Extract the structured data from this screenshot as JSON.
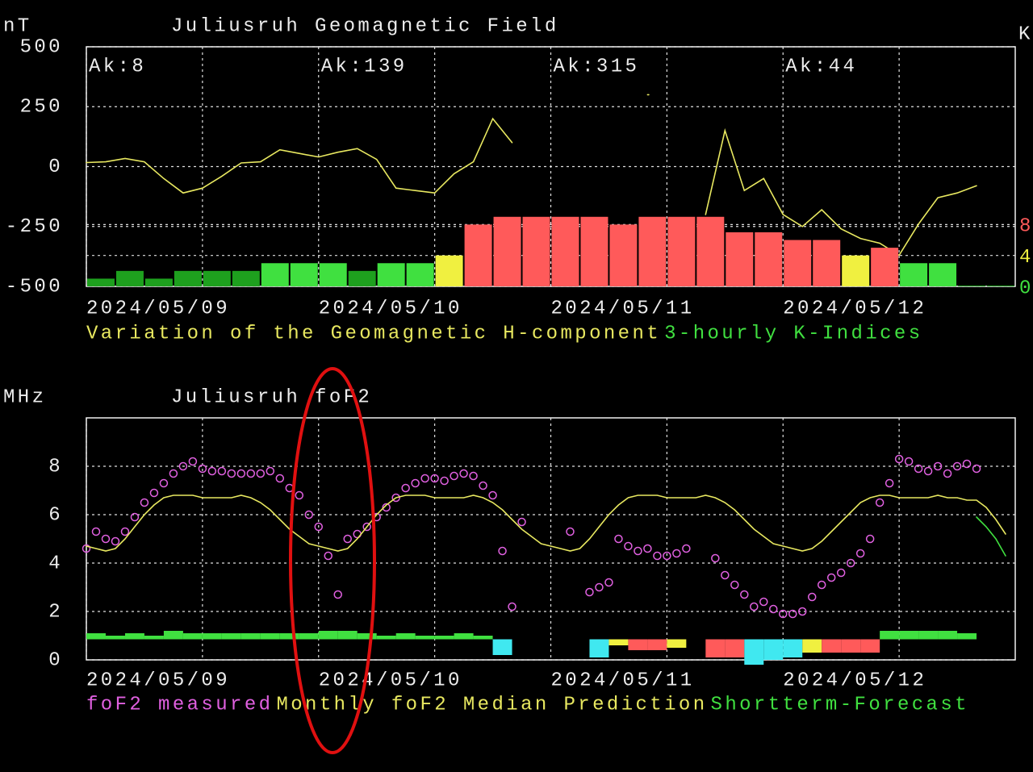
{
  "chart_data": [
    {
      "type": "combo",
      "title": "Juliusruh Geomagnetic Field",
      "y_label": "nT",
      "y2_label": "K",
      "annotations": [
        "Ak:8",
        "Ak:139",
        "Ak:315",
        "Ak:44"
      ],
      "xlim": [
        0,
        96
      ],
      "xticks": [
        {
          "value": 0,
          "label": "2024/05/09"
        },
        {
          "value": 24,
          "label": "2024/05/10"
        },
        {
          "value": 48,
          "label": "2024/05/11"
        },
        {
          "value": 72,
          "label": "2024/05/12"
        }
      ],
      "ylim": [
        -500,
        500
      ],
      "yticks": [
        -500,
        -250,
        0,
        250,
        500
      ],
      "y2lim": [
        0,
        31
      ],
      "y2ticks": [
        0,
        4,
        8
      ],
      "y2tick_colors": [
        "#40e040",
        "#f0f040",
        "#ff5a5a"
      ],
      "grid": true,
      "series": [
        {
          "name": "Variation of the Geomagnetic H-component",
          "type": "line",
          "color": "#e8e860",
          "x": [
            0,
            2,
            4,
            6,
            8,
            10,
            12,
            14,
            16,
            18,
            20,
            22,
            24,
            26,
            28,
            30,
            32,
            34,
            36,
            38,
            40,
            42,
            44,
            46,
            48,
            50,
            52,
            54,
            56,
            58,
            60,
            62,
            64,
            66,
            68,
            70,
            72,
            74,
            76,
            78,
            80,
            82,
            84,
            86,
            88,
            90,
            92,
            94,
            96
          ],
          "values": [
            17,
            20,
            34,
            20,
            -50,
            -110,
            -90,
            -40,
            15,
            20,
            70,
            55,
            40,
            60,
            75,
            30,
            -90,
            -100,
            -110,
            -30,
            20,
            200,
            100,
            null,
            null,
            null,
            null,
            null,
            null,
            300,
            null,
            null,
            -200,
            150,
            -100,
            -50,
            -200,
            -250,
            -180,
            -260,
            -300,
            -320,
            -370,
            -240,
            -130,
            -110,
            -80,
            null,
            null
          ]
        },
        {
          "name": "3-hourly K-Indices",
          "type": "bar",
          "axis": "y2",
          "color": "#40e040",
          "x": [
            0,
            3,
            6,
            9,
            12,
            15,
            18,
            21,
            24,
            27,
            30,
            33,
            36,
            39,
            42,
            45,
            48,
            51,
            54,
            57,
            60,
            63,
            66,
            69,
            72,
            75,
            78,
            81,
            84,
            87,
            90,
            93
          ],
          "values": [
            1,
            2,
            1,
            2,
            2,
            2,
            3,
            3,
            3,
            2,
            3,
            3,
            4,
            8,
            9,
            9,
            9,
            9,
            8,
            9,
            9,
            9,
            7,
            7,
            6,
            6,
            4,
            5,
            3,
            3,
            0,
            0
          ],
          "colors": [
            "#1ea01e",
            "#1ea01e",
            "#1ea01e",
            "#1ea01e",
            "#1ea01e",
            "#1ea01e",
            "#40e040",
            "#40e040",
            "#40e040",
            "#1ea01e",
            "#40e040",
            "#40e040",
            "#f0f040",
            "#ff5a5a",
            "#ff5a5a",
            "#ff5a5a",
            "#ff5a5a",
            "#ff5a5a",
            "#ff5a5a",
            "#ff5a5a",
            "#ff5a5a",
            "#ff5a5a",
            "#ff5a5a",
            "#ff5a5a",
            "#ff5a5a",
            "#ff5a5a",
            "#f0f040",
            "#ff5a5a",
            "#40e040",
            "#40e040",
            "#1ea01e",
            "#1ea01e"
          ]
        }
      ]
    },
    {
      "type": "combo",
      "title": "Juliusruh foF2",
      "y_label": "MHz",
      "xlim": [
        0,
        96
      ],
      "xticks": [
        {
          "value": 0,
          "label": "2024/05/09"
        },
        {
          "value": 24,
          "label": "2024/05/10"
        },
        {
          "value": 48,
          "label": "2024/05/11"
        },
        {
          "value": 72,
          "label": "2024/05/12"
        }
      ],
      "ylim": [
        0,
        10
      ],
      "yticks": [
        0,
        2,
        4,
        6,
        8
      ],
      "grid": true,
      "series": [
        {
          "type": "range_bar",
          "x": [
            0,
            2,
            4,
            6,
            8,
            10,
            12,
            14,
            16,
            18,
            20,
            22,
            24,
            26,
            28,
            30,
            32,
            34,
            36,
            38,
            40,
            42,
            44,
            46,
            48,
            50,
            52,
            54,
            56,
            58,
            60,
            62,
            64,
            66,
            68,
            70,
            72,
            74,
            76,
            78,
            80,
            82,
            84,
            86,
            88,
            90,
            92,
            94
          ],
          "low": [
            0.85,
            0.85,
            0.85,
            0.85,
            0.85,
            0.85,
            0.85,
            0.85,
            0.85,
            0.85,
            0.85,
            0.85,
            0.85,
            0.85,
            0.85,
            0.85,
            0.85,
            0.85,
            0.85,
            0.85,
            0.85,
            0.2,
            null,
            null,
            null,
            null,
            0.1,
            0.6,
            0.4,
            0.4,
            0.5,
            null,
            0.1,
            0.1,
            -0.2,
            0.0,
            0.1,
            0.3,
            0.3,
            0.3,
            0.3,
            0.85,
            0.85,
            0.85,
            0.85,
            0.85,
            null,
            null
          ],
          "values": [
            1.1,
            1.0,
            1.1,
            1.0,
            1.2,
            1.1,
            1.1,
            1.1,
            1.1,
            1.1,
            1.1,
            1.1,
            1.2,
            1.2,
            1.1,
            1.0,
            1.1,
            1.0,
            1.0,
            1.1,
            1.0,
            0.85,
            null,
            null,
            null,
            null,
            0.85,
            0.85,
            0.85,
            0.85,
            0.85,
            null,
            0.85,
            0.85,
            0.85,
            0.85,
            0.85,
            0.85,
            0.85,
            0.85,
            0.85,
            1.2,
            1.2,
            1.2,
            1.2,
            1.1,
            null,
            null
          ],
          "colors": [
            "#40e040",
            "#40e040",
            "#40e040",
            "#40e040",
            "#40e040",
            "#40e040",
            "#40e040",
            "#40e040",
            "#40e040",
            "#40e040",
            "#40e040",
            "#40e040",
            "#40e040",
            "#40e040",
            "#40e040",
            "#40e040",
            "#40e040",
            "#40e040",
            "#40e040",
            "#40e040",
            "#40e040",
            "#40e8f0",
            null,
            null,
            null,
            null,
            "#40e8f0",
            "#f0f040",
            "#ff5a5a",
            "#ff5a5a",
            "#f0f040",
            null,
            "#ff5a5a",
            "#ff5a5a",
            "#40e8f0",
            "#40e8f0",
            "#40e8f0",
            "#f0f040",
            "#ff5a5a",
            "#ff5a5a",
            "#ff5a5a",
            "#40e040",
            "#40e040",
            "#40e040",
            "#40e040",
            "#40e040",
            null,
            null
          ]
        },
        {
          "name": "foF2 measured",
          "type": "scatter",
          "color": "#e060e0",
          "x": [
            0,
            1,
            2,
            3,
            4,
            5,
            6,
            7,
            8,
            9,
            10,
            11,
            12,
            13,
            14,
            15,
            16,
            17,
            18,
            19,
            20,
            21,
            22,
            23,
            24,
            25,
            26,
            27,
            28,
            29,
            30,
            31,
            32,
            33,
            34,
            35,
            36,
            37,
            38,
            39,
            40,
            41,
            42,
            43,
            44,
            45,
            46,
            47,
            48,
            49,
            50,
            51,
            52,
            53,
            54,
            55,
            56,
            57,
            58,
            59,
            60,
            61,
            62,
            63,
            64,
            65,
            66,
            67,
            68,
            69,
            70,
            71,
            72,
            73,
            74,
            75,
            76,
            77,
            78,
            79,
            80,
            81,
            82,
            83,
            84,
            85,
            86,
            87,
            88,
            89,
            90,
            91,
            92,
            93,
            94,
            95
          ],
          "values": [
            4.6,
            5.3,
            5.0,
            4.9,
            5.3,
            5.9,
            6.5,
            6.9,
            7.3,
            7.7,
            8.0,
            8.2,
            7.9,
            7.8,
            7.8,
            7.7,
            7.7,
            7.7,
            7.7,
            7.8,
            7.5,
            7.1,
            6.8,
            6.0,
            5.5,
            4.3,
            2.7,
            5.0,
            5.2,
            5.5,
            5.9,
            6.3,
            6.7,
            7.1,
            7.3,
            7.5,
            7.5,
            7.4,
            7.6,
            7.7,
            7.6,
            7.2,
            6.8,
            4.5,
            2.2,
            5.7,
            null,
            null,
            null,
            null,
            5.3,
            null,
            2.8,
            3.0,
            3.2,
            5.0,
            4.7,
            4.5,
            4.6,
            4.3,
            4.3,
            4.4,
            4.6,
            null,
            null,
            4.2,
            3.5,
            3.1,
            2.7,
            2.2,
            2.4,
            2.1,
            1.9,
            1.9,
            2.0,
            2.6,
            3.1,
            3.4,
            3.6,
            4.0,
            4.4,
            5.0,
            6.5,
            7.3,
            8.3,
            8.2,
            7.9,
            7.8,
            8.0,
            7.7,
            8.0,
            8.1,
            7.9,
            null,
            null,
            null
          ]
        },
        {
          "name": "Monthly foF2 Median Prediction",
          "type": "line",
          "color": "#e8e860",
          "x": [
            0,
            1,
            2,
            3,
            4,
            5,
            6,
            7,
            8,
            9,
            10,
            11,
            12,
            13,
            14,
            15,
            16,
            17,
            18,
            19,
            20,
            21,
            22,
            23,
            24,
            25,
            26,
            27,
            28,
            29,
            30,
            31,
            32,
            33,
            34,
            35,
            36,
            37,
            38,
            39,
            40,
            41,
            42,
            43,
            44,
            45,
            46,
            47,
            48,
            49,
            50,
            51,
            52,
            53,
            54,
            55,
            56,
            57,
            58,
            59,
            60,
            61,
            62,
            63,
            64,
            65,
            66,
            67,
            68,
            69,
            70,
            71,
            72,
            73,
            74,
            75,
            76,
            77,
            78,
            79,
            80,
            81,
            82,
            83,
            84,
            85,
            86,
            87,
            88,
            89,
            90,
            91,
            92,
            93,
            94,
            95
          ],
          "values": [
            4.7,
            4.6,
            4.5,
            4.6,
            5.0,
            5.5,
            6.0,
            6.4,
            6.7,
            6.8,
            6.8,
            6.8,
            6.7,
            6.7,
            6.7,
            6.7,
            6.8,
            6.7,
            6.5,
            6.2,
            5.8,
            5.4,
            5.1,
            4.8,
            4.7,
            4.6,
            4.5,
            4.6,
            5.0,
            5.5,
            6.0,
            6.4,
            6.7,
            6.8,
            6.8,
            6.8,
            6.7,
            6.7,
            6.7,
            6.7,
            6.8,
            6.7,
            6.5,
            6.2,
            5.8,
            5.4,
            5.1,
            4.8,
            4.7,
            4.6,
            4.5,
            4.6,
            5.0,
            5.5,
            6.0,
            6.4,
            6.7,
            6.8,
            6.8,
            6.8,
            6.7,
            6.7,
            6.7,
            6.7,
            6.8,
            6.7,
            6.5,
            6.2,
            5.8,
            5.4,
            5.1,
            4.8,
            4.7,
            4.6,
            4.5,
            4.6,
            4.9,
            5.3,
            5.7,
            6.1,
            6.5,
            6.7,
            6.8,
            6.8,
            6.7,
            6.7,
            6.7,
            6.7,
            6.8,
            6.7,
            6.7,
            6.6,
            6.6,
            6.3,
            5.8,
            5.2
          ]
        },
        {
          "name": "Shortterm-Forecast",
          "type": "line",
          "color": "#40e040",
          "x": [
            92,
            93,
            94,
            95
          ],
          "values": [
            5.9,
            5.5,
            5.0,
            4.3
          ]
        }
      ]
    }
  ]
}
